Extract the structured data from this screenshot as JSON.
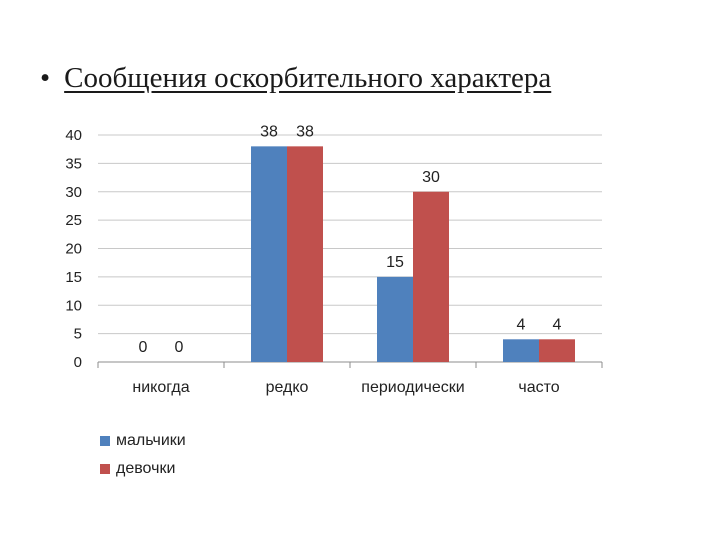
{
  "slide": {
    "bullet": "•",
    "title": "Сообщения оскорбительного характера"
  },
  "chart_data": {
    "type": "bar",
    "categories": [
      "никогда",
      "редко",
      "периодически",
      "часто"
    ],
    "series": [
      {
        "name": "мальчики",
        "values": [
          0,
          38,
          15,
          4
        ],
        "color": "#4f81bd"
      },
      {
        "name": "девочки",
        "values": [
          0,
          38,
          30,
          4
        ],
        "color": "#c0504d"
      }
    ],
    "ylim": [
      0,
      40
    ],
    "yticks": [
      0,
      5,
      10,
      15,
      20,
      25,
      30,
      35,
      40
    ],
    "grid": true,
    "legend": "bottom-left",
    "data_labels": true
  }
}
